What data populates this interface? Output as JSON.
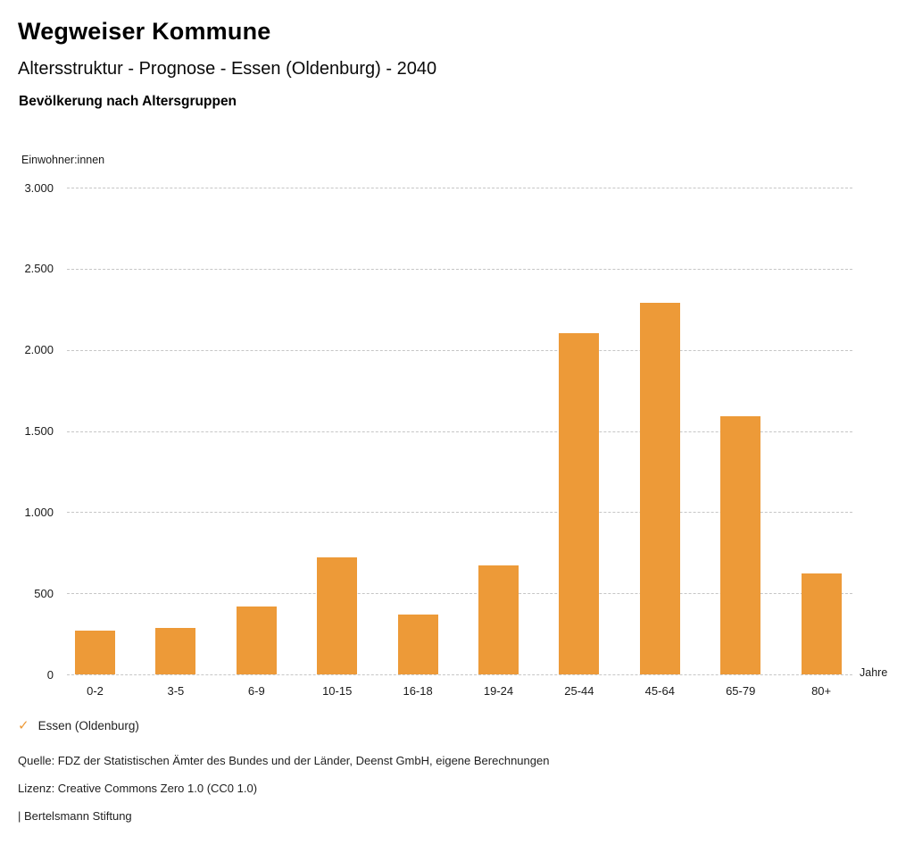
{
  "header": {
    "title": "Wegweiser Kommune",
    "subtitle": "Altersstruktur - Prognose - Essen (Oldenburg) - 2040",
    "section_title": "Bevölkerung nach Altersgruppen"
  },
  "chart_data": {
    "type": "bar",
    "title": "Bevölkerung nach Altersgruppen",
    "ylabel": "Einwohner:innen",
    "xlabel": "Jahre",
    "categories": [
      "0-2",
      "3-5",
      "6-9",
      "10-15",
      "16-18",
      "19-24",
      "25-44",
      "45-64",
      "65-79",
      "80+"
    ],
    "values": [
      270,
      285,
      420,
      720,
      370,
      670,
      2105,
      2290,
      1590,
      620
    ],
    "series_name": "Essen (Oldenburg)",
    "ylim": [
      0,
      3000
    ],
    "yticks": [
      0,
      500,
      1000,
      1500,
      2000,
      2500,
      3000
    ],
    "ytick_labels": [
      "0",
      "500",
      "1.000",
      "1.500",
      "2.000",
      "2.500",
      "3.000"
    ],
    "grid": "horizontal-dashed",
    "legend_position": "bottom-left",
    "bar_color": "#ED9A38"
  },
  "legend": {
    "check_icon": "✓",
    "label": "Essen (Oldenburg)"
  },
  "footer": {
    "source": "Quelle: FDZ der Statistischen Ämter des Bundes und der Länder, Deenst GmbH, eigene Berechnungen",
    "license": "Lizenz: Creative Commons Zero 1.0 (CC0 1.0)",
    "attribution": "| Bertelsmann Stiftung"
  },
  "colors": {
    "bar": "#ED9A38",
    "grid": "#c6c6c6",
    "text": "#1a1a1a",
    "check": "#ED9A38"
  }
}
